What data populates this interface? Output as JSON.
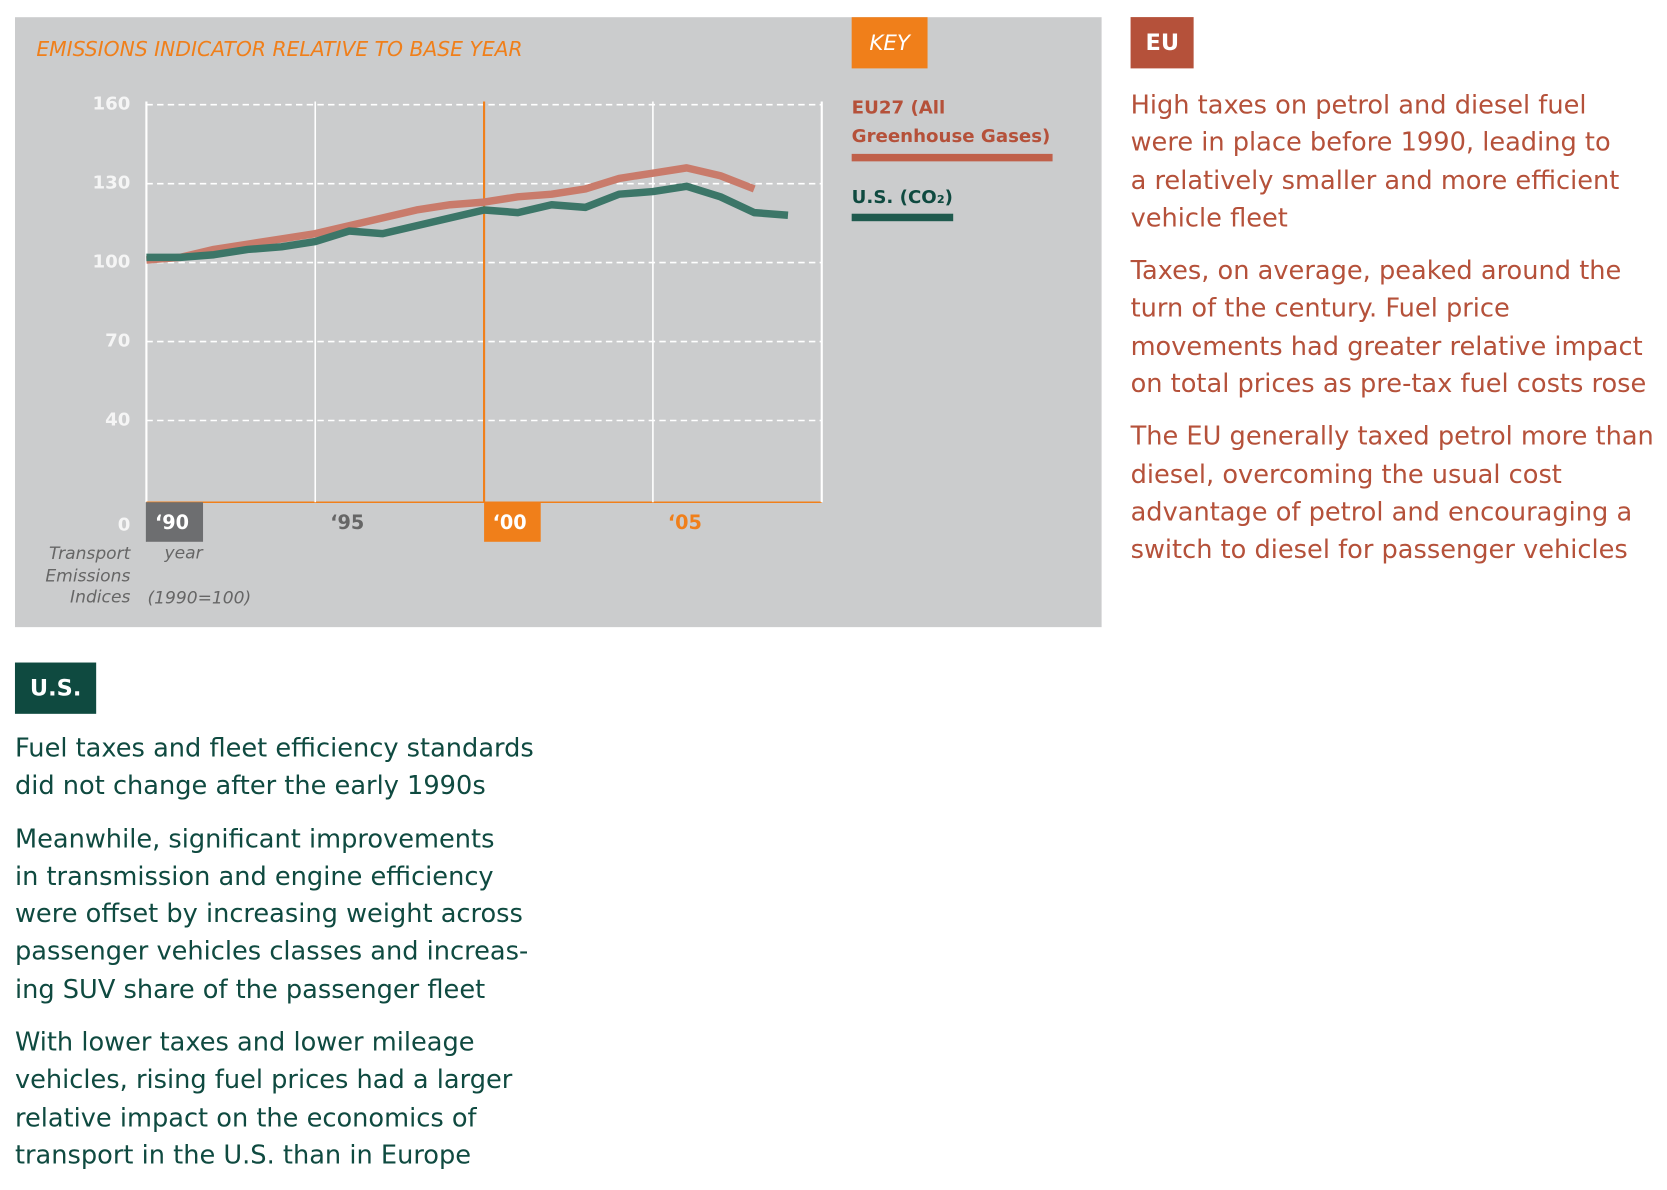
{
  "chart_data": {
    "type": "line",
    "title": "EMISSIONS INDICATOR RELATIVE TO BASE YEAR",
    "key_label": "KEY",
    "x_label": "year",
    "y_label": "Transport Emissions Indices",
    "y_note": "(1990=100)",
    "x": [
      1990,
      1991,
      1992,
      1993,
      1994,
      1995,
      1996,
      1997,
      1998,
      1999,
      2000,
      2001,
      2002,
      2003,
      2004,
      2005,
      2006,
      2007,
      2008,
      2009
    ],
    "xlim": [
      1990,
      2010
    ],
    "xticks": [
      {
        "value": 1990,
        "label": "‘90"
      },
      {
        "value": 1995,
        "label": "‘95"
      },
      {
        "value": 2000,
        "label": "‘00"
      },
      {
        "value": 2005,
        "label": "‘05"
      }
    ],
    "ylim": [
      0,
      160
    ],
    "yticks": [
      0,
      40,
      70,
      100,
      130,
      160
    ],
    "grid": true,
    "series": [
      {
        "name": "EU27 (All Greenhouse Gases)",
        "color": "#c97b6b",
        "legend_color": "#b5513a",
        "values": [
          101,
          102,
          105,
          107,
          109,
          111,
          114,
          117,
          120,
          122,
          123,
          125,
          126,
          128,
          132,
          134,
          136,
          133,
          128,
          null
        ]
      },
      {
        "name": "U.S. (CO₂)",
        "color": "#3c7668",
        "legend_color": "#0f4a40",
        "values": [
          102,
          102,
          103,
          105,
          106,
          108,
          112,
          111,
          114,
          117,
          120,
          119,
          122,
          121,
          126,
          127,
          129,
          125,
          119,
          118
        ]
      }
    ]
  },
  "panels": {
    "eu": {
      "heading": "EU",
      "paragraphs": [
        [
          "High taxes on petrol and diesel fuel",
          "were in place before 1990, leading to",
          "a relatively smaller and more efficient",
          "vehicle fleet"
        ],
        [
          "Taxes, on average, peaked around the",
          "turn of the century. Fuel price",
          "movements had greater relative impact",
          "on total prices as pre-tax fuel costs rose"
        ],
        [
          "The EU generally taxed petrol more than",
          "diesel, overcoming the usual cost",
          "advantage of petrol and encouraging a",
          "switch to diesel for passenger vehicles"
        ]
      ]
    },
    "us": {
      "heading": "U.S.",
      "paragraphs": [
        [
          "Fuel taxes and fleet efficiency standards",
          "did not change after the early 1990s"
        ],
        [
          "Meanwhile, significant improvements",
          "in transmission and engine efficiency",
          "were offset by increasing weight across",
          "passenger vehicles classes and increas-",
          "ing SUV share of the passenger fleet"
        ],
        [
          "With lower taxes and lower mileage",
          "vehicles, rising fuel prices had a larger",
          "relative impact on the economics of",
          "transport in the U.S. than in Europe"
        ]
      ]
    }
  }
}
